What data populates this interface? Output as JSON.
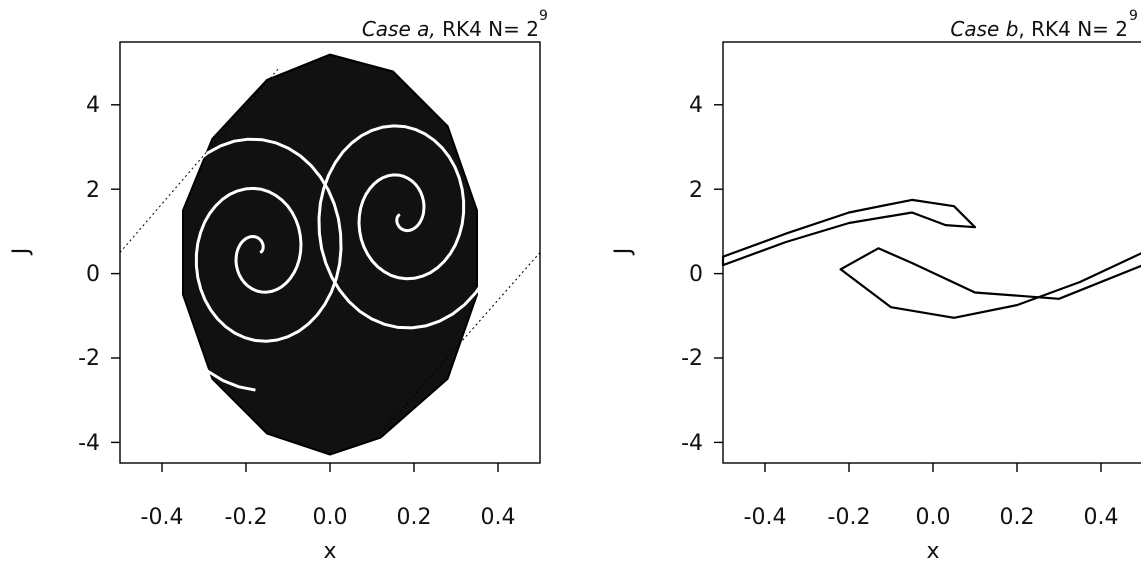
{
  "chart_data": [
    {
      "type": "scatter",
      "title": {
        "case": "Case a,",
        "rest": " RK4 N= 2",
        "exponent": "9"
      },
      "xlabel": "x",
      "ylabel": "J",
      "xlim": [
        -0.5,
        0.5
      ],
      "ylim": [
        -4.5,
        5.5
      ],
      "xticks": [
        -0.4,
        -0.2,
        0.0,
        0.2,
        0.4
      ],
      "xtick_labels": [
        "-0.4",
        "-0.2",
        "0.0",
        "0.2",
        "0.4"
      ],
      "yticks": [
        -4,
        -2,
        0,
        2,
        4
      ],
      "ytick_labels": [
        "-4",
        "-2",
        "0",
        "2",
        "4"
      ],
      "grid": false,
      "series": [
        {
          "points_approx": {
            "description": "Poincare section: filled double-spiral chaotic region",
            "outline": [
              [
                0.0,
                5.2
              ],
              [
                0.15,
                4.8
              ],
              [
                0.28,
                3.5
              ],
              [
                0.35,
                1.5
              ],
              [
                0.35,
                -0.5
              ],
              [
                0.28,
                -2.5
              ],
              [
                0.12,
                -3.9
              ],
              [
                0.0,
                -4.3
              ],
              [
                -0.15,
                -3.8
              ],
              [
                -0.28,
                -2.5
              ],
              [
                -0.35,
                -0.5
              ],
              [
                -0.35,
                1.5
              ],
              [
                -0.28,
                3.2
              ],
              [
                -0.15,
                4.6
              ]
            ],
            "arm_center_left": [
              -0.17,
              0.5
            ],
            "arm_center_right": [
              0.17,
              1.4
            ],
            "outer_tails": [
              {
                "from": [
                  -0.5,
                  0.5
                ],
                "to": [
                  -0.12,
                  4.9
                ]
              },
              {
                "from": [
                  0.5,
                  0.5
                ],
                "to": [
                  0.12,
                  -3.8
                ]
              }
            ]
          }
        }
      ]
    },
    {
      "type": "scatter",
      "title": {
        "case": "Case b",
        "rest": ", RK4 N= 2",
        "exponent": "9"
      },
      "xlabel": "x",
      "ylabel": "J",
      "xlim": [
        -0.5,
        0.5
      ],
      "ylim": [
        -4.5,
        5.5
      ],
      "xticks": [
        -0.4,
        -0.2,
        0.0,
        0.2,
        0.4
      ],
      "xtick_labels": [
        "-0.4",
        "-0.2",
        "0.0",
        "0.2",
        "0.4"
      ],
      "yticks": [
        -4,
        -2,
        0,
        2,
        4
      ],
      "ytick_labels": [
        "-4",
        "-2",
        "0",
        "2",
        "4"
      ],
      "grid": false,
      "series": [
        {
          "points_approx": {
            "description": "Thin folded filament (two tongues)",
            "upper_tongue": [
              [
                -0.5,
                0.4
              ],
              [
                -0.35,
                0.95
              ],
              [
                -0.2,
                1.45
              ],
              [
                -0.05,
                1.75
              ],
              [
                0.05,
                1.6
              ],
              [
                0.1,
                1.1
              ],
              [
                0.03,
                1.15
              ],
              [
                -0.05,
                1.45
              ],
              [
                -0.2,
                1.2
              ],
              [
                -0.35,
                0.75
              ],
              [
                -0.5,
                0.2
              ]
            ],
            "lower_tongue": [
              [
                0.5,
                0.5
              ],
              [
                0.35,
                -0.2
              ],
              [
                0.2,
                -0.75
              ],
              [
                0.05,
                -1.05
              ],
              [
                -0.1,
                -0.8
              ],
              [
                -0.22,
                0.1
              ],
              [
                -0.13,
                0.6
              ],
              [
                -0.05,
                0.25
              ],
              [
                0.1,
                -0.45
              ],
              [
                0.3,
                -0.6
              ],
              [
                0.5,
                0.2
              ]
            ]
          }
        }
      ]
    }
  ]
}
